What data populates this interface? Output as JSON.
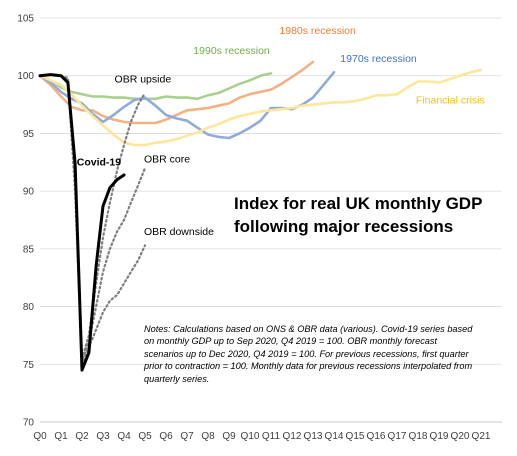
{
  "chart_data": {
    "type": "line",
    "title_lines": [
      "Index for real UK monthly GDP",
      "following major recessions"
    ],
    "notes": "Notes: Calculations based on ONS & OBR data (various). Covid-19 series based on monthly GDP up to Sep 2020, Q4 2019 = 100. OBR monthly forecast scenarios up to Dec 2020, Q4 2019 = 100. For previous recessions, first quarter prior to contraction = 100. Monthly data for previous recessions interpolated from quarterly series.",
    "xlabel": "",
    "ylabel": "",
    "x_unit": "quarters",
    "xlim": [
      0,
      22
    ],
    "ylim": [
      70,
      105
    ],
    "yticks": [
      70,
      75,
      80,
      85,
      90,
      95,
      100,
      105
    ],
    "categories": [
      "Q0",
      "Q1",
      "Q2",
      "Q3",
      "Q4",
      "Q5",
      "Q6",
      "Q7",
      "Q8",
      "Q9",
      "Q10",
      "Q11",
      "Q12",
      "Q13",
      "Q14",
      "Q15",
      "Q16",
      "Q17",
      "Q18",
      "Q19",
      "Q20",
      "Q21"
    ],
    "grid": "horizontal",
    "legend": "none (series labelled directly on chart)",
    "series": [
      {
        "name": "1990s recession",
        "color": "#a9d18e",
        "style": "solid",
        "label_color": "#70ad47",
        "label_at": [
          7.3,
          101.9
        ],
        "x": [
          0,
          0.5,
          1,
          1.5,
          2,
          2.5,
          3,
          3.5,
          4,
          4.5,
          5,
          5.5,
          6,
          6.5,
          7,
          7.5,
          8,
          8.5,
          9,
          9.5,
          10,
          10.5,
          11
        ],
        "values": [
          100,
          99.6,
          99.0,
          98.6,
          98.4,
          98.2,
          98.2,
          98.1,
          98.1,
          98.0,
          98.0,
          98.0,
          98.2,
          98.1,
          98.1,
          98.0,
          98.3,
          98.5,
          98.9,
          99.3,
          99.6,
          100.0,
          100.2
        ]
      },
      {
        "name": "1980s recession",
        "color": "#f4b183",
        "style": "solid",
        "label_color": "#ed7d31",
        "label_at": [
          11.4,
          103.6
        ],
        "x": [
          0,
          0.5,
          1,
          1.5,
          2,
          2.5,
          3,
          3.5,
          4,
          4.5,
          5,
          5.5,
          6,
          6.5,
          7,
          7.5,
          8,
          8.5,
          9,
          9.5,
          10,
          10.5,
          11,
          11.5,
          12,
          12.5,
          13
        ],
        "values": [
          100,
          99.2,
          98.2,
          97.3,
          97.0,
          97.0,
          96.5,
          96.2,
          96.0,
          95.9,
          95.9,
          95.9,
          96.2,
          96.6,
          97.0,
          97.1,
          97.2,
          97.4,
          97.6,
          98.1,
          98.4,
          98.6,
          98.8,
          99.3,
          99.9,
          100.5,
          101.2
        ]
      },
      {
        "name": "1970s recession",
        "color": "#8faadc",
        "style": "solid",
        "label_color": "#4472c4",
        "label_at": [
          14.3,
          101.2
        ],
        "x": [
          0,
          0.5,
          1,
          1.5,
          2,
          2.5,
          3,
          3.5,
          4,
          4.5,
          5,
          5.5,
          6,
          6.5,
          7,
          7.5,
          8,
          8.5,
          9,
          9.5,
          10,
          10.5,
          11,
          11.5,
          12,
          12.5,
          13,
          13.5,
          14
        ],
        "values": [
          100,
          99.4,
          98.6,
          98.0,
          97.6,
          96.7,
          96.0,
          96.6,
          97.3,
          97.9,
          98.1,
          97.4,
          96.6,
          96.3,
          96.1,
          95.5,
          94.9,
          94.7,
          94.6,
          95.0,
          95.5,
          96.1,
          97.2,
          97.2,
          97.1,
          97.5,
          98.1,
          99.2,
          100.3
        ]
      },
      {
        "name": "Financial crisis",
        "color": "#ffe699",
        "style": "solid",
        "label_color": "#ffc000",
        "label_at": [
          17.9,
          97.6
        ],
        "x": [
          0,
          0.5,
          1,
          1.5,
          2,
          2.5,
          3,
          3.5,
          4,
          4.5,
          5,
          5.5,
          6,
          6.5,
          7,
          7.5,
          8,
          8.5,
          9,
          9.5,
          10,
          10.5,
          11,
          11.5,
          12,
          12.5,
          13,
          13.5,
          14,
          14.5,
          15,
          15.5,
          16,
          16.5,
          17,
          17.5,
          18,
          18.5,
          19,
          19.5,
          20,
          20.5,
          21
        ],
        "values": [
          100,
          99.6,
          99.2,
          98.4,
          97.4,
          96.5,
          95.7,
          94.9,
          94.2,
          94.0,
          94.0,
          94.2,
          94.3,
          94.5,
          94.8,
          95.1,
          95.5,
          95.8,
          96.2,
          96.5,
          96.7,
          96.9,
          97.0,
          97.1,
          97.2,
          97.4,
          97.5,
          97.6,
          97.7,
          97.7,
          97.8,
          98.0,
          98.3,
          98.3,
          98.4,
          99.0,
          99.5,
          99.5,
          99.4,
          99.7,
          100.0,
          100.3,
          100.5
        ]
      },
      {
        "name": "Covid-19",
        "color": "#000000",
        "style": "solid-bold",
        "label_color": "#000000",
        "label_at": [
          1.75,
          92.2
        ],
        "x": [
          0,
          0.5,
          1,
          1.33,
          1.67,
          2,
          2.33,
          2.67,
          3,
          3.33,
          3.67,
          4
        ],
        "values": [
          100,
          100.1,
          100.0,
          99.4,
          92.4,
          74.5,
          76.0,
          83.5,
          88.7,
          90.3,
          91.0,
          91.4
        ]
      },
      {
        "name": "OBR upside",
        "color": "#7f7f7f",
        "style": "dotted",
        "label_color": "#000000",
        "label_at": [
          3.55,
          99.4
        ],
        "x": [
          1,
          1.33,
          1.67,
          2,
          2.33,
          2.67,
          3,
          3.33,
          3.67,
          4,
          4.33,
          4.67,
          5
        ],
        "values": [
          100,
          99.8,
          92.0,
          75.5,
          77.5,
          82.0,
          86.0,
          89.0,
          91.8,
          94.0,
          96.0,
          97.5,
          98.5
        ]
      },
      {
        "name": "OBR core",
        "color": "#7f7f7f",
        "style": "dotted",
        "label_color": "#000000",
        "label_at": [
          4.95,
          92.5
        ],
        "x": [
          1,
          1.33,
          1.67,
          2,
          2.33,
          2.67,
          3,
          3.33,
          3.67,
          4,
          4.33,
          4.67,
          5
        ],
        "values": [
          100,
          99.7,
          91.0,
          75.3,
          77.0,
          80.0,
          83.0,
          85.0,
          86.5,
          87.5,
          89.0,
          90.5,
          92.0
        ]
      },
      {
        "name": "OBR downside",
        "color": "#7f7f7f",
        "style": "dotted",
        "label_color": "#000000",
        "label_at": [
          4.95,
          86.2
        ],
        "x": [
          1,
          1.33,
          1.67,
          2,
          2.33,
          2.67,
          3,
          3.33,
          3.67,
          4,
          4.33,
          4.67,
          5
        ],
        "values": [
          100,
          99.6,
          90.0,
          75.0,
          76.5,
          78.0,
          79.5,
          80.5,
          81.0,
          82.0,
          83.0,
          84.0,
          85.3
        ]
      }
    ]
  }
}
